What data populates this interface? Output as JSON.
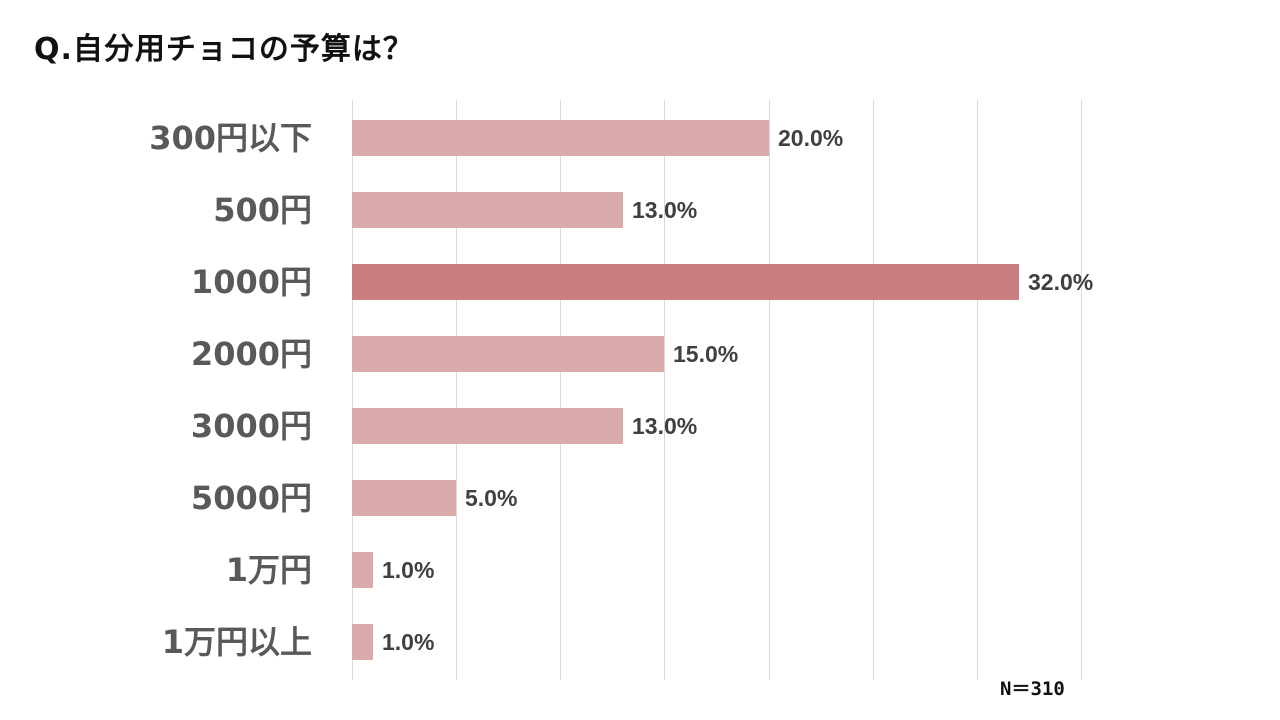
{
  "title": "Q.自分用チョコの予算は？",
  "note": "N＝310",
  "colors": {
    "bar": "#dbabab",
    "highlight": "#c97f7f",
    "grid": "#d9d9d9"
  },
  "chart_data": {
    "type": "bar",
    "orientation": "horizontal",
    "title": "Q.自分用チョコの予算は？",
    "categories": [
      "300円以下",
      "500円",
      "1000円",
      "2000円",
      "3000円",
      "5000円",
      "1万円",
      "1万円以上"
    ],
    "values": [
      20.0,
      13.0,
      32.0,
      15.0,
      13.0,
      5.0,
      1.0,
      1.0
    ],
    "labels": [
      "20.0%",
      "13.0%",
      "32.0%",
      "15.0%",
      "13.0%",
      "5.0%",
      "1.0%",
      "1.0%"
    ],
    "highlight_index": 2,
    "xlabel": "",
    "ylabel": "",
    "xlim": [
      0,
      35
    ],
    "grid": true,
    "gridline_step": 5,
    "annotation": "N＝310"
  }
}
